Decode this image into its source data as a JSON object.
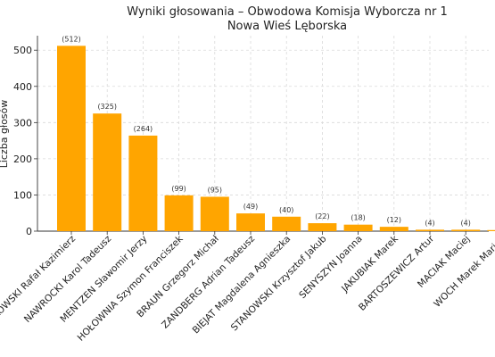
{
  "chart_data": {
    "type": "bar",
    "title": "Wyniki głosowania – Obwodowa Komisja Wyborcza nr 1",
    "subtitle": "Nowa Wieś Lęborska",
    "xlabel": "",
    "ylabel": "Liczba głosów",
    "ylim": [
      0,
      540
    ],
    "yticks": [
      0,
      100,
      200,
      300,
      400,
      500
    ],
    "grid": true,
    "bar_color": "#FFA500",
    "categories": [
      "TRZASKOWSKI Rafał Kazimierz",
      "NAWROCKI Karol Tadeusz",
      "MENTZEN Sławomir Jerzy",
      "HOŁOWNIA Szymon Franciszek",
      "BRAUN Grzegorz Michał",
      "ZANDBERG Adrian Tadeusz",
      "BIEJAT Magdalena Agnieszka",
      "STANOWSKI Krzysztof Jakub",
      "SENYSZYN Joanna",
      "JAKUBIAK Marek",
      "BARTOSZEWICZ Artur",
      "MACIAK Maciej",
      "WOCH Marek Marian"
    ],
    "values": [
      512,
      325,
      264,
      99,
      95,
      49,
      40,
      22,
      18,
      12,
      4,
      4,
      3
    ],
    "data_labels": [
      "(512)",
      "(325)",
      "(264)",
      "(99)",
      "(95)",
      "(49)",
      "(40)",
      "(22)",
      "(18)",
      "(12)",
      "(4)",
      "(4)",
      ""
    ]
  }
}
